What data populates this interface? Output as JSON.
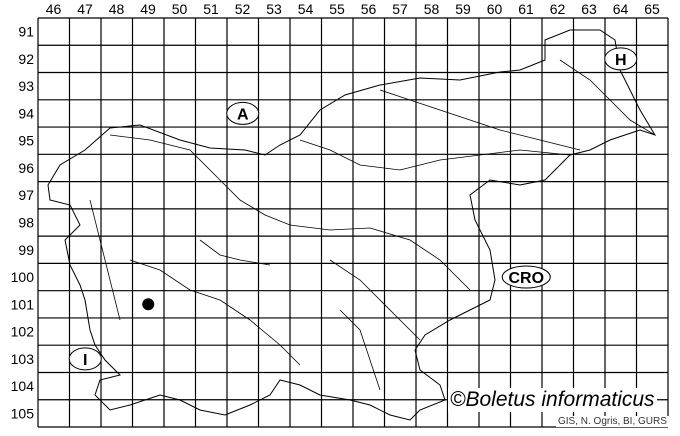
{
  "map": {
    "columns": [
      "46",
      "47",
      "48",
      "49",
      "50",
      "51",
      "52",
      "53",
      "54",
      "55",
      "56",
      "57",
      "58",
      "59",
      "60",
      "61",
      "62",
      "63",
      "64",
      "65"
    ],
    "rows": [
      "91",
      "92",
      "93",
      "94",
      "95",
      "96",
      "97",
      "98",
      "99",
      "100",
      "101",
      "102",
      "103",
      "104",
      "105"
    ],
    "country_labels": [
      {
        "text": "A",
        "col": "52",
        "row": "94"
      },
      {
        "text": "H",
        "col": "64",
        "row": "92"
      },
      {
        "text": "CRO",
        "col": "61",
        "row": "100"
      },
      {
        "text": "I",
        "col": "47",
        "row": "103"
      }
    ],
    "records": [
      {
        "col": "49",
        "row": "101"
      }
    ]
  },
  "credit": "©Boletus informaticus",
  "source": "GIS, N. Ogris, BI, GURS",
  "colors": {
    "lines": "#000000",
    "background": "#ffffff",
    "record_dot": "#000000"
  }
}
